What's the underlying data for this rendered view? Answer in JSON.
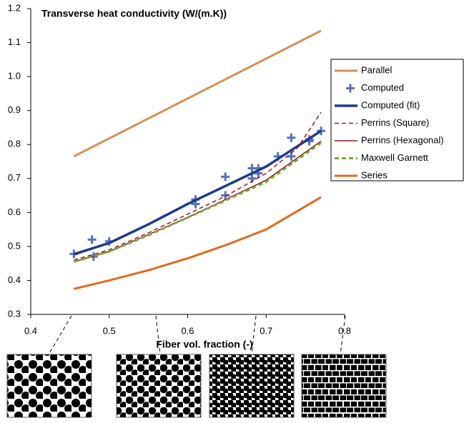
{
  "chart_data": {
    "type": "line",
    "title": "Transverse  heat conductivity (W/(m.K))",
    "x_label": "Fiber vol. fraction (-)",
    "xlim": [
      0.4,
      0.8
    ],
    "xticks": [
      0.4,
      0.5,
      0.6,
      0.7,
      0.8
    ],
    "ylim": [
      0.3,
      1.2
    ],
    "yticks": [
      0.3,
      0.4,
      0.5,
      0.6,
      0.7,
      0.8,
      0.9,
      {
        "value": 1,
        "label": "1.0"
      },
      1.1,
      1.2
    ],
    "legend": "right",
    "series": [
      {
        "name": "Parallel",
        "color": "#d2915a",
        "width": 3,
        "x": [
          0.455,
          0.77
        ],
        "values": [
          0.765,
          1.135
        ]
      },
      {
        "name": "Computed",
        "color": "#5470c0",
        "marker": "plus",
        "x": [
          0.455,
          0.478,
          0.48,
          0.5,
          0.61,
          0.61,
          0.648,
          0.648,
          0.682,
          0.682,
          0.69,
          0.69,
          0.715,
          0.732,
          0.732,
          0.755,
          0.755,
          0.77
        ],
        "values": [
          0.478,
          0.52,
          0.47,
          0.515,
          0.638,
          0.625,
          0.705,
          0.65,
          0.73,
          0.7,
          0.73,
          0.715,
          0.765,
          0.82,
          0.765,
          0.815,
          0.81,
          0.84
        ]
      },
      {
        "name": "Computed (fit)",
        "color": "#1f3a8a",
        "width": 3.5,
        "x": [
          0.455,
          0.5,
          0.55,
          0.6,
          0.65,
          0.7,
          0.77
        ],
        "values": [
          0.477,
          0.51,
          0.565,
          0.625,
          0.68,
          0.735,
          0.84
        ]
      },
      {
        "name": "Perrins (Square)",
        "color": "#a01818",
        "width": 1.5,
        "dash": true,
        "x": [
          0.455,
          0.5,
          0.55,
          0.6,
          0.65,
          0.7,
          0.74,
          0.77
        ],
        "values": [
          0.46,
          0.49,
          0.54,
          0.595,
          0.65,
          0.715,
          0.79,
          0.895
        ]
      },
      {
        "name": "Perrins (Hexagonal)",
        "color": "#8b1a1a",
        "width": 1.5,
        "x": [
          0.455,
          0.5,
          0.55,
          0.6,
          0.65,
          0.7,
          0.77
        ],
        "values": [
          0.455,
          0.485,
          0.535,
          0.585,
          0.64,
          0.695,
          0.81
        ]
      },
      {
        "name": "Maxwell Garnett",
        "color": "#7aa83a",
        "width": 3,
        "dash": true,
        "x": [
          0.455,
          0.5,
          0.55,
          0.6,
          0.65,
          0.7,
          0.77
        ],
        "values": [
          0.455,
          0.485,
          0.533,
          0.585,
          0.637,
          0.69,
          0.805
        ]
      },
      {
        "name": "Series",
        "color": "#e06a1e",
        "width": 3,
        "x": [
          0.455,
          0.5,
          0.55,
          0.6,
          0.65,
          0.7,
          0.77
        ],
        "values": [
          0.375,
          0.4,
          0.43,
          0.465,
          0.505,
          0.55,
          0.645
        ]
      }
    ]
  }
}
